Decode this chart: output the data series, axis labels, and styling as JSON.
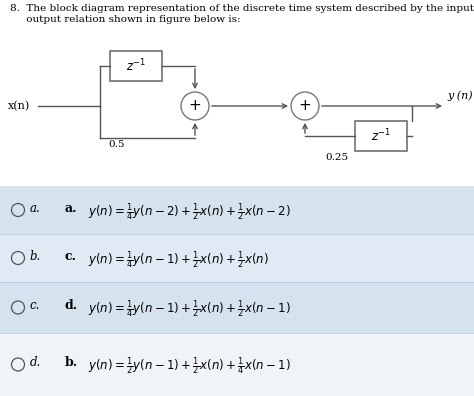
{
  "bg_color": "#ffffff",
  "diagram_bg": "#ffffff",
  "options_bg": [
    "#dce8f5",
    "#e8f0f8",
    "#dce8f5",
    "#ffffff"
  ],
  "title1": "8.  The block diagram representation of the discrete time system described by the input-",
  "title2": "     output relation shown in figure below is:",
  "x_label": "x(n)",
  "y_label": "y (n)",
  "z1_label": "z⁻¹",
  "z2_label": "z⁻¹",
  "gain1": "0.5",
  "gain2": "0.25",
  "option_letters": [
    "a.",
    "b.",
    "c.",
    "d."
  ],
  "eq_labels": [
    "a.",
    "c.",
    "d.",
    "b."
  ],
  "eq_label_bold": [
    true,
    true,
    true,
    true
  ],
  "equations": [
    "y(n) = \\frac{1}{4}y(n-2) + \\frac{1}{2}x(n) + \\frac{1}{2}x(n-2)",
    "y(n) = \\frac{1}{4}y(n-1) + \\frac{1}{2}x(n) + \\frac{1}{2}x(n)",
    "y(n) = \\frac{1}{4}y(n-1) + \\frac{1}{2}x(n) + \\frac{1}{2}x(n-1)",
    "y(n) = \\frac{1}{2}y(n-1) + \\frac{1}{2}x(n) + \\frac{1}{4}x(n-1)"
  ],
  "title_fontsize": 7.5,
  "eq_fontsize": 8.5,
  "diagram_fontsize": 8
}
